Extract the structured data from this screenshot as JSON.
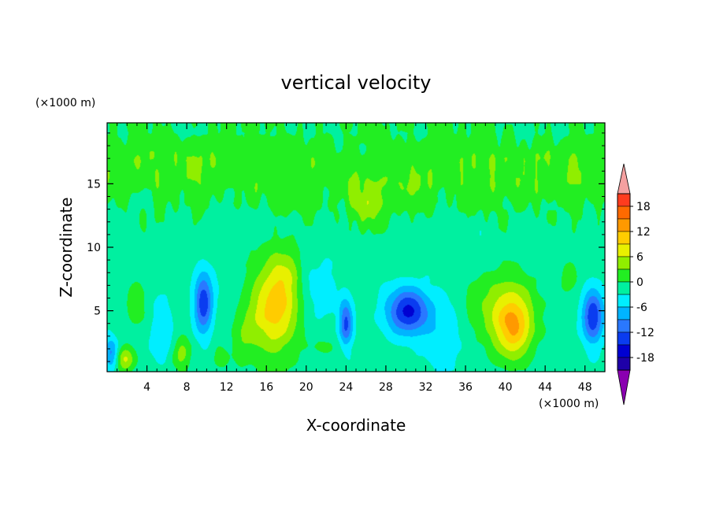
{
  "chart_data": {
    "type": "heatmap",
    "title": "vertical velocity",
    "xlabel": "X-coordinate",
    "ylabel": "Z-coordinate",
    "x_unit": "(×1000 m)",
    "y_unit": "(×1000 m)",
    "xlim": [
      0,
      50
    ],
    "ylim": [
      0.2,
      19.8
    ],
    "x_ticks": [
      4,
      8,
      12,
      16,
      20,
      24,
      28,
      32,
      36,
      40,
      44,
      48
    ],
    "y_ticks": [
      5,
      10,
      15
    ],
    "colorbar": {
      "levels": [
        -21,
        -18,
        -15,
        -12,
        -9,
        -6,
        -3,
        0,
        3,
        6,
        9,
        12,
        15,
        18,
        21
      ],
      "labels": [
        18,
        12,
        6,
        0,
        -6,
        -12,
        -18
      ],
      "colors": [
        "#5a00a0",
        "#1e00a8",
        "#0000d2",
        "#0a3cf0",
        "#2a78ff",
        "#00b4ff",
        "#00eeff",
        "#00f0a0",
        "#22ee22",
        "#90ee00",
        "#e8f000",
        "#ffcc00",
        "#ff9900",
        "#ff6a00",
        "#ff3c1e",
        "#e80000"
      ],
      "extend": "both"
    },
    "features": [
      {
        "kind": "updraft",
        "x": 16.8,
        "z": 5.2,
        "peak": 12
      },
      {
        "kind": "updraft",
        "x": 40.8,
        "z": 3.5,
        "peak": 17
      },
      {
        "kind": "updraft",
        "x": 1.8,
        "z": 1.2,
        "peak": 8
      },
      {
        "kind": "updraft",
        "x": 7.5,
        "z": 1.6,
        "peak": 6
      },
      {
        "kind": "updraft",
        "x": 26.0,
        "z": 13.0,
        "peak": 5
      },
      {
        "kind": "downdraft",
        "x": 9.7,
        "z": 5.6,
        "peak": -13
      },
      {
        "kind": "downdraft",
        "x": 24.0,
        "z": 4.0,
        "peak": -11
      },
      {
        "kind": "downdraft",
        "x": 30.2,
        "z": 5.0,
        "peak": -14
      },
      {
        "kind": "downdraft",
        "x": 48.8,
        "z": 4.5,
        "peak": -13
      },
      {
        "kind": "downdraft",
        "x": 0.4,
        "z": 1.6,
        "peak": -8
      }
    ]
  }
}
